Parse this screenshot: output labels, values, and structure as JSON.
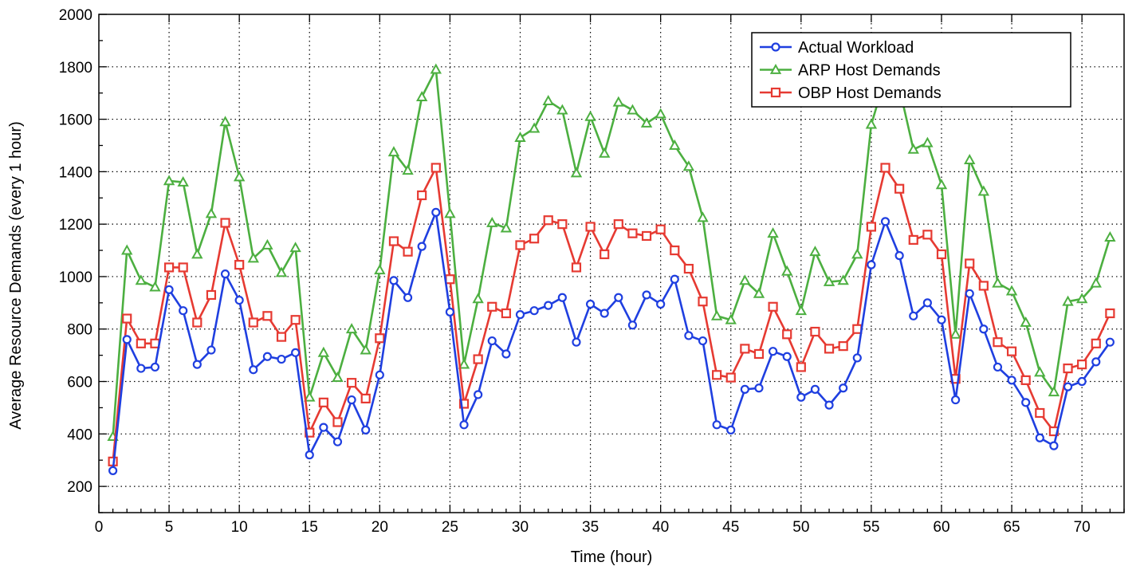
{
  "chart_data": {
    "type": "line",
    "title": "",
    "xlabel": "Time (hour)",
    "ylabel": "Average Resource Demands (every 1 hour)",
    "xlim": [
      0,
      73
    ],
    "ylim": [
      100,
      2000
    ],
    "x_ticks": [
      0,
      5,
      10,
      15,
      20,
      25,
      30,
      35,
      40,
      45,
      50,
      55,
      60,
      65,
      70
    ],
    "y_ticks": [
      200,
      400,
      600,
      800,
      1000,
      1200,
      1400,
      1600,
      1800,
      2000
    ],
    "grid": true,
    "legend_position": "top-right",
    "x": [
      1,
      2,
      3,
      4,
      5,
      6,
      7,
      8,
      9,
      10,
      11,
      12,
      13,
      14,
      15,
      16,
      17,
      18,
      19,
      20,
      21,
      22,
      23,
      24,
      25,
      26,
      27,
      28,
      29,
      30,
      31,
      32,
      33,
      34,
      35,
      36,
      37,
      38,
      39,
      40,
      41,
      42,
      43,
      44,
      45,
      46,
      47,
      48,
      49,
      50,
      51,
      52,
      53,
      54,
      55,
      56,
      57,
      58,
      59,
      60,
      61,
      62,
      63,
      64,
      65,
      66,
      67,
      68,
      69,
      70,
      71,
      72
    ],
    "series": [
      {
        "name": "Actual Workload",
        "color": "#1f3fe0",
        "marker": "circle",
        "values": [
          260,
          760,
          650,
          655,
          950,
          870,
          665,
          720,
          1010,
          910,
          645,
          695,
          685,
          710,
          320,
          425,
          370,
          530,
          415,
          625,
          985,
          920,
          1115,
          1245,
          865,
          435,
          550,
          755,
          705,
          855,
          870,
          890,
          920,
          750,
          895,
          860,
          920,
          815,
          930,
          895,
          990,
          775,
          755,
          435,
          415,
          570,
          575,
          715,
          695,
          540,
          570,
          510,
          575,
          690,
          1045,
          1210,
          1080,
          850,
          900,
          835,
          530,
          935,
          800,
          655,
          605,
          520,
          385,
          355,
          580,
          600,
          675,
          750
        ]
      },
      {
        "name": "ARP Host Demands",
        "color": "#4caf40",
        "marker": "triangle",
        "values": [
          390,
          1100,
          985,
          960,
          1365,
          1360,
          1085,
          1240,
          1590,
          1380,
          1070,
          1120,
          1015,
          1110,
          540,
          710,
          615,
          800,
          720,
          1025,
          1475,
          1405,
          1685,
          1790,
          1240,
          665,
          915,
          1205,
          1185,
          1530,
          1565,
          1670,
          1635,
          1395,
          1610,
          1470,
          1665,
          1635,
          1585,
          1620,
          1500,
          1420,
          1225,
          850,
          835,
          985,
          935,
          1165,
          1020,
          870,
          1095,
          980,
          985,
          1085,
          1580,
          1760,
          1720,
          1485,
          1510,
          1350,
          780,
          1445,
          1325,
          975,
          945,
          825,
          635,
          560,
          905,
          915,
          975,
          1150
        ]
      },
      {
        "name": "OBP Host Demands",
        "color": "#e63a32",
        "marker": "square",
        "values": [
          295,
          840,
          745,
          745,
          1035,
          1035,
          825,
          930,
          1205,
          1045,
          825,
          850,
          770,
          835,
          405,
          520,
          445,
          595,
          535,
          765,
          1135,
          1095,
          1310,
          1415,
          990,
          515,
          685,
          885,
          860,
          1120,
          1145,
          1215,
          1200,
          1035,
          1190,
          1085,
          1200,
          1165,
          1155,
          1180,
          1100,
          1030,
          905,
          625,
          615,
          725,
          705,
          885,
          780,
          655,
          790,
          725,
          735,
          800,
          1190,
          1415,
          1335,
          1140,
          1160,
          1085,
          610,
          1050,
          965,
          750,
          715,
          605,
          480,
          410,
          650,
          665,
          745,
          860
        ]
      }
    ]
  }
}
